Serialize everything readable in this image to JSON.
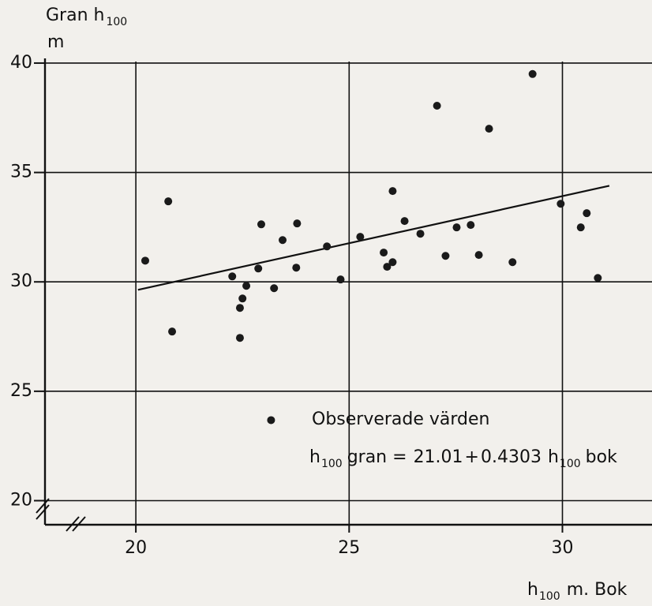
{
  "chart_data": {
    "type": "scatter",
    "ylabel": {
      "text": "Gran h",
      "sub": "100",
      "unit": "m"
    },
    "xlabel": {
      "text": "h",
      "sub": "100",
      "unit": "m. Bok"
    },
    "annotation": "Observerade värden",
    "equation": [
      "h",
      "100",
      "gran =",
      21.01,
      "+",
      0.4303,
      "h",
      "100",
      "bok"
    ],
    "fit_x": [
      20.05,
      31.1
    ],
    "xlim": [
      17.87,
      32.1
    ],
    "ylim": [
      18.9,
      40.07
    ],
    "xticks": [
      20,
      25,
      30
    ],
    "yticks": [
      20,
      25,
      30,
      35,
      40
    ],
    "grid": true,
    "color": "#1a1a1a",
    "x": [
      20.22,
      20.85,
      20.76,
      22.26,
      22.44,
      22.44,
      22.5,
      22.59,
      22.87,
      22.94,
      23.24,
      23.44,
      23.76,
      23.78,
      24.48,
      24.8,
      25.26,
      23.17,
      25.81,
      25.89,
      26.02,
      26.02,
      26.3,
      26.67,
      27.06,
      27.26,
      27.52,
      27.85,
      28.04,
      28.28,
      28.83,
      29.3,
      29.96,
      30.43,
      30.57,
      30.83
    ],
    "values": [
      30.97,
      27.73,
      33.68,
      30.25,
      28.81,
      27.44,
      29.24,
      29.82,
      30.61,
      32.63,
      29.71,
      31.91,
      30.65,
      32.67,
      31.62,
      30.11,
      32.06,
      23.68,
      31.34,
      30.69,
      30.9,
      34.15,
      32.78,
      32.2,
      38.05,
      31.19,
      32.49,
      32.6,
      31.23,
      37.0,
      30.9,
      39.5,
      33.57,
      32.49,
      33.14,
      30.18
    ]
  }
}
